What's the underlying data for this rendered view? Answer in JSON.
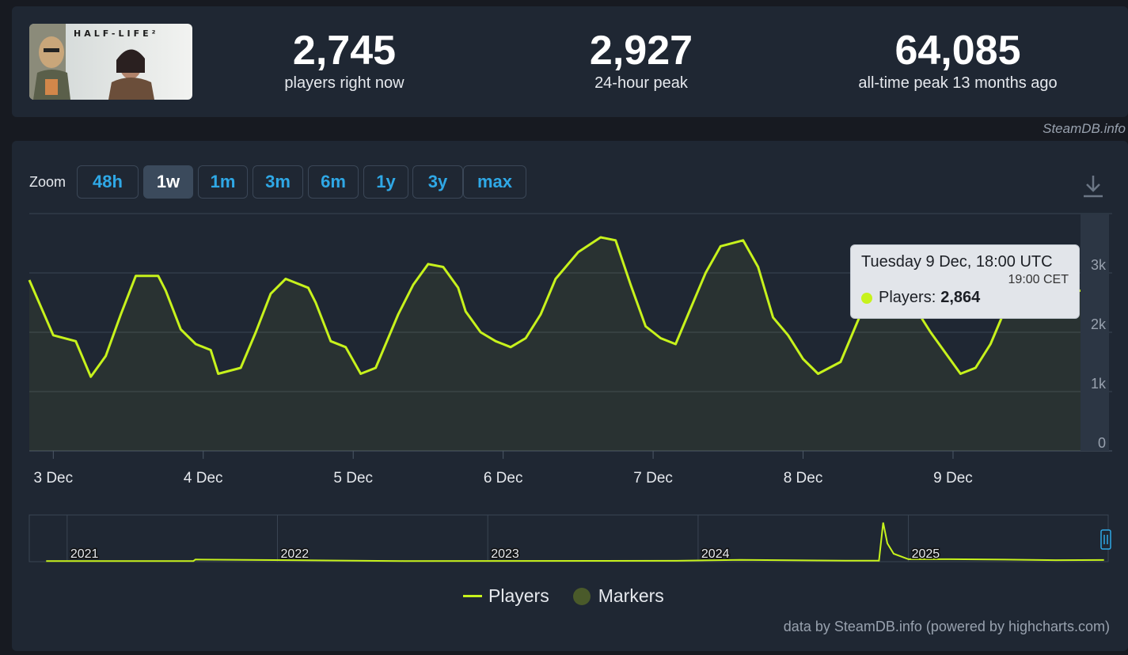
{
  "game": {
    "logo_text": "HALF-LIFE²"
  },
  "stats": [
    {
      "value": "2,745",
      "label": "players right now"
    },
    {
      "value": "2,927",
      "label": "24-hour peak"
    },
    {
      "value": "64,085",
      "label": "all-time peak 13 months ago"
    }
  ],
  "source_credit": "SteamDB.info",
  "zoom": {
    "label": "Zoom",
    "buttons": [
      "48h",
      "1w",
      "1m",
      "3m",
      "6m",
      "1y",
      "3y",
      "max"
    ],
    "active": "1w"
  },
  "tooltip": {
    "date": "Tuesday 9 Dec, 18:00 UTC",
    "local_time": "19:00 CET",
    "series": "Players:",
    "value": "2,864"
  },
  "legend": [
    "Players",
    "Markers"
  ],
  "footer_credit": "data by SteamDB.info (powered by highcharts.com)",
  "colors": {
    "series": "#c7f21c",
    "accent": "#2fa8e6",
    "background": "#1f2733"
  },
  "chart_data": [
    {
      "type": "line",
      "x_labels": [
        "3 Dec",
        "4 Dec",
        "5 Dec",
        "6 Dec",
        "7 Dec",
        "8 Dec",
        "9 Dec"
      ],
      "y_ticks": [
        "0",
        "1k",
        "2k",
        "3k"
      ],
      "ylim": [
        0,
        4000
      ],
      "grid": true,
      "series": [
        {
          "name": "Players",
          "x": [
            2.84,
            3.0,
            3.15,
            3.25,
            3.35,
            3.45,
            3.55,
            3.7,
            3.75,
            3.85,
            3.95,
            4.05,
            4.1,
            4.25,
            4.35,
            4.45,
            4.55,
            4.7,
            4.75,
            4.85,
            4.95,
            5.05,
            5.15,
            5.3,
            5.4,
            5.5,
            5.6,
            5.7,
            5.75,
            5.85,
            5.95,
            6.05,
            6.15,
            6.25,
            6.35,
            6.5,
            6.65,
            6.75,
            6.85,
            6.95,
            7.05,
            7.15,
            7.25,
            7.35,
            7.45,
            7.6,
            7.7,
            7.8,
            7.9,
            8.0,
            8.1,
            8.25,
            8.35,
            8.45,
            8.55,
            8.65,
            8.75,
            8.85,
            8.95,
            9.05,
            9.15,
            9.25,
            9.35,
            9.45,
            9.55,
            9.65,
            9.75,
            9.85
          ],
          "values": [
            2880,
            1950,
            1850,
            1250,
            1600,
            2300,
            2950,
            2950,
            2700,
            2050,
            1800,
            1700,
            1300,
            1400,
            2000,
            2650,
            2900,
            2750,
            2500,
            1850,
            1750,
            1300,
            1400,
            2300,
            2800,
            3150,
            3100,
            2750,
            2350,
            2000,
            1850,
            1750,
            1900,
            2300,
            2900,
            3350,
            3600,
            3550,
            2800,
            2100,
            1900,
            1800,
            2400,
            3000,
            3450,
            3550,
            3100,
            2250,
            1950,
            1550,
            1300,
            1500,
            2100,
            2700,
            2950,
            2900,
            2400,
            2000,
            1650,
            1300,
            1400,
            1800,
            2400,
            2800,
            2864,
            2750,
            2700,
            2700
          ]
        }
      ]
    },
    {
      "type": "line",
      "x_labels": [
        "2021",
        "2022",
        "2023",
        "2024",
        "2025"
      ],
      "x": [
        2020.9,
        2021.6,
        2021.61,
        2022.6,
        2023.5,
        2023.9,
        2024.2,
        2024.7,
        2024.86,
        2024.88,
        2024.9,
        2024.93,
        2025.0,
        2025.2,
        2025.5,
        2025.7,
        2025.93
      ],
      "series": [
        {
          "name": "Players",
          "values": [
            1000,
            900,
            3500,
            1100,
            1300,
            1400,
            3000,
            1500,
            1600,
            64085,
            30000,
            13000,
            4000,
            4000,
            3200,
            2500,
            2700
          ]
        }
      ]
    }
  ]
}
